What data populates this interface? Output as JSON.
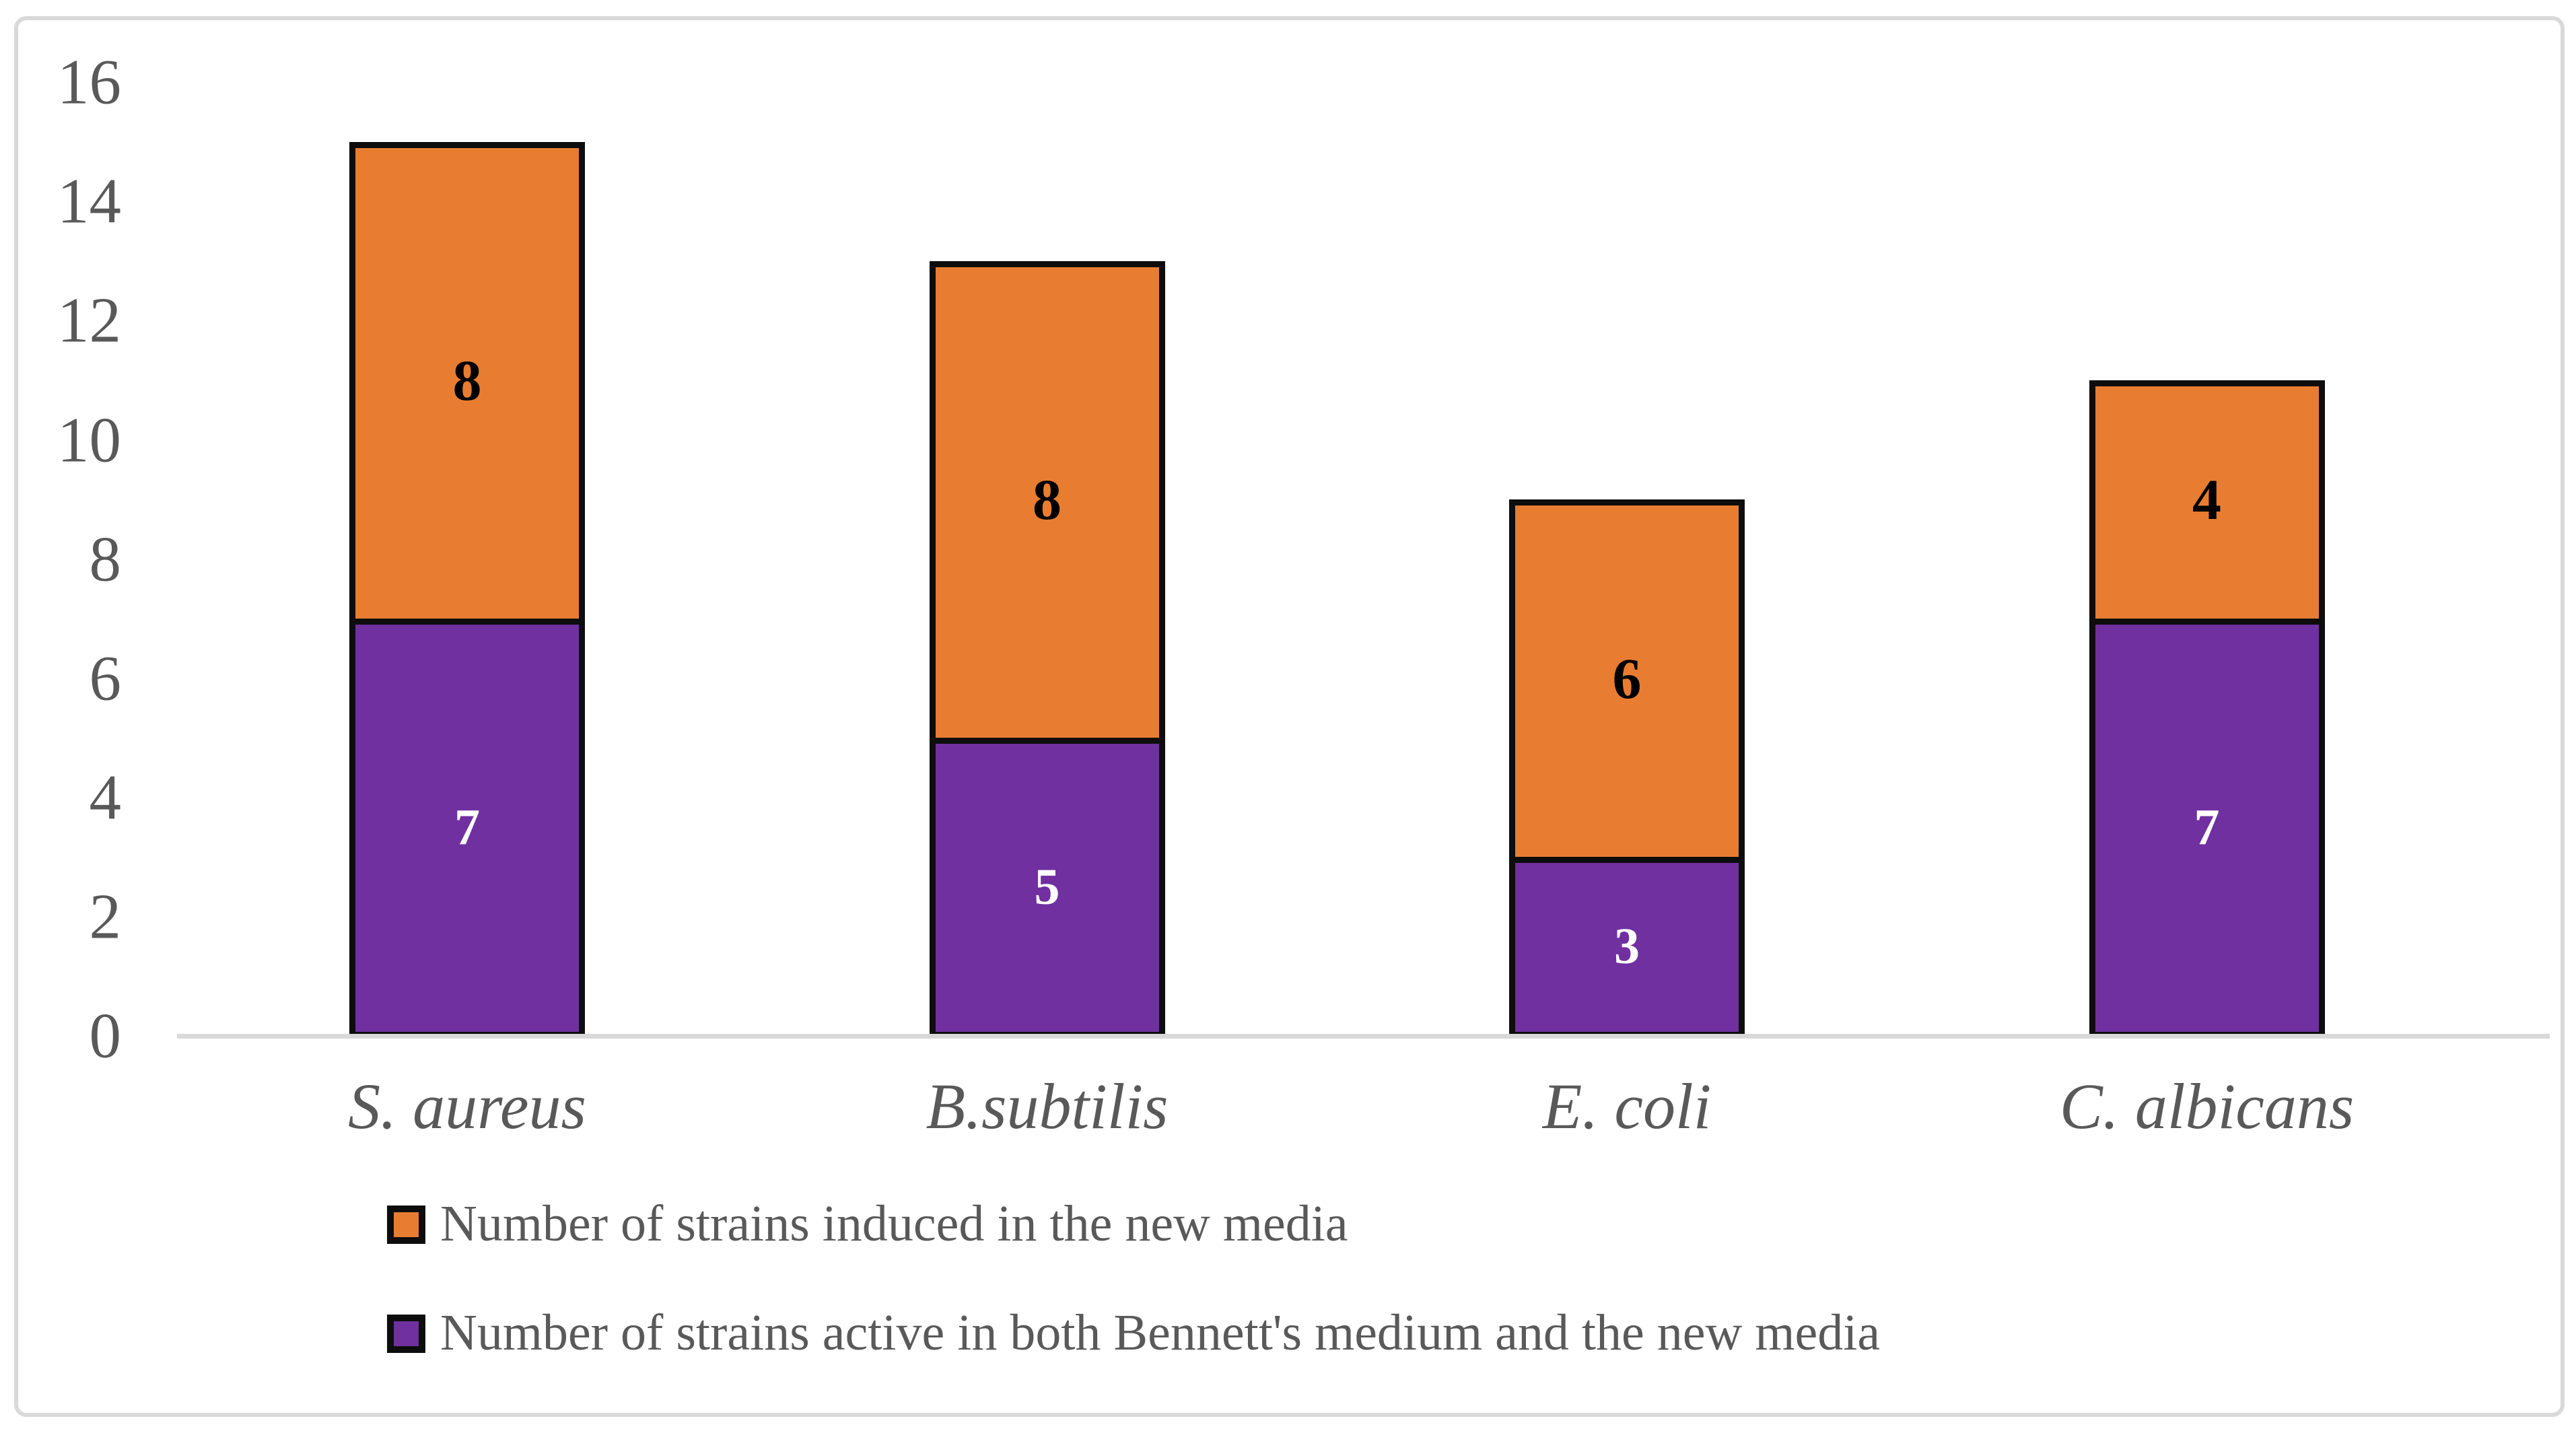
{
  "figure": {
    "background": "#FFFFFF",
    "frame_border_color": "#D9D9D9"
  },
  "chart_data": {
    "type": "bar",
    "stacked": true,
    "title": "",
    "xlabel": "",
    "ylabel": "",
    "categories": [
      "S. aureus",
      "B.subtilis",
      "E. coli",
      "C. albicans"
    ],
    "series": [
      {
        "name": "Number of strains active in both Bennett's medium and the new media",
        "color": "#7030A0",
        "label_color": "#FFFFFF",
        "values": [
          7,
          5,
          3,
          7
        ]
      },
      {
        "name": "Number of strains induced in the new media",
        "color": "#E87D31",
        "label_color": "#000000",
        "values": [
          8,
          8,
          6,
          4
        ]
      }
    ],
    "ylim": [
      0,
      16
    ],
    "yticks": [
      "0",
      "2",
      "4",
      "6",
      "8",
      "10",
      "12",
      "14",
      "16"
    ],
    "grid": false,
    "legend_position": "bottom-left",
    "axis_line_color": "#D9D9D9",
    "tick_label_color": "#595959",
    "category_label_color": "#595959",
    "bar_border_color": "#0D0D0D"
  },
  "legend": {
    "items": [
      {
        "label": "Number of strains induced in the new media",
        "swatch_color": "#E87D31"
      },
      {
        "label": "Number of strains active in both Bennett's medium and the new media",
        "swatch_color": "#7030A0"
      }
    ]
  }
}
